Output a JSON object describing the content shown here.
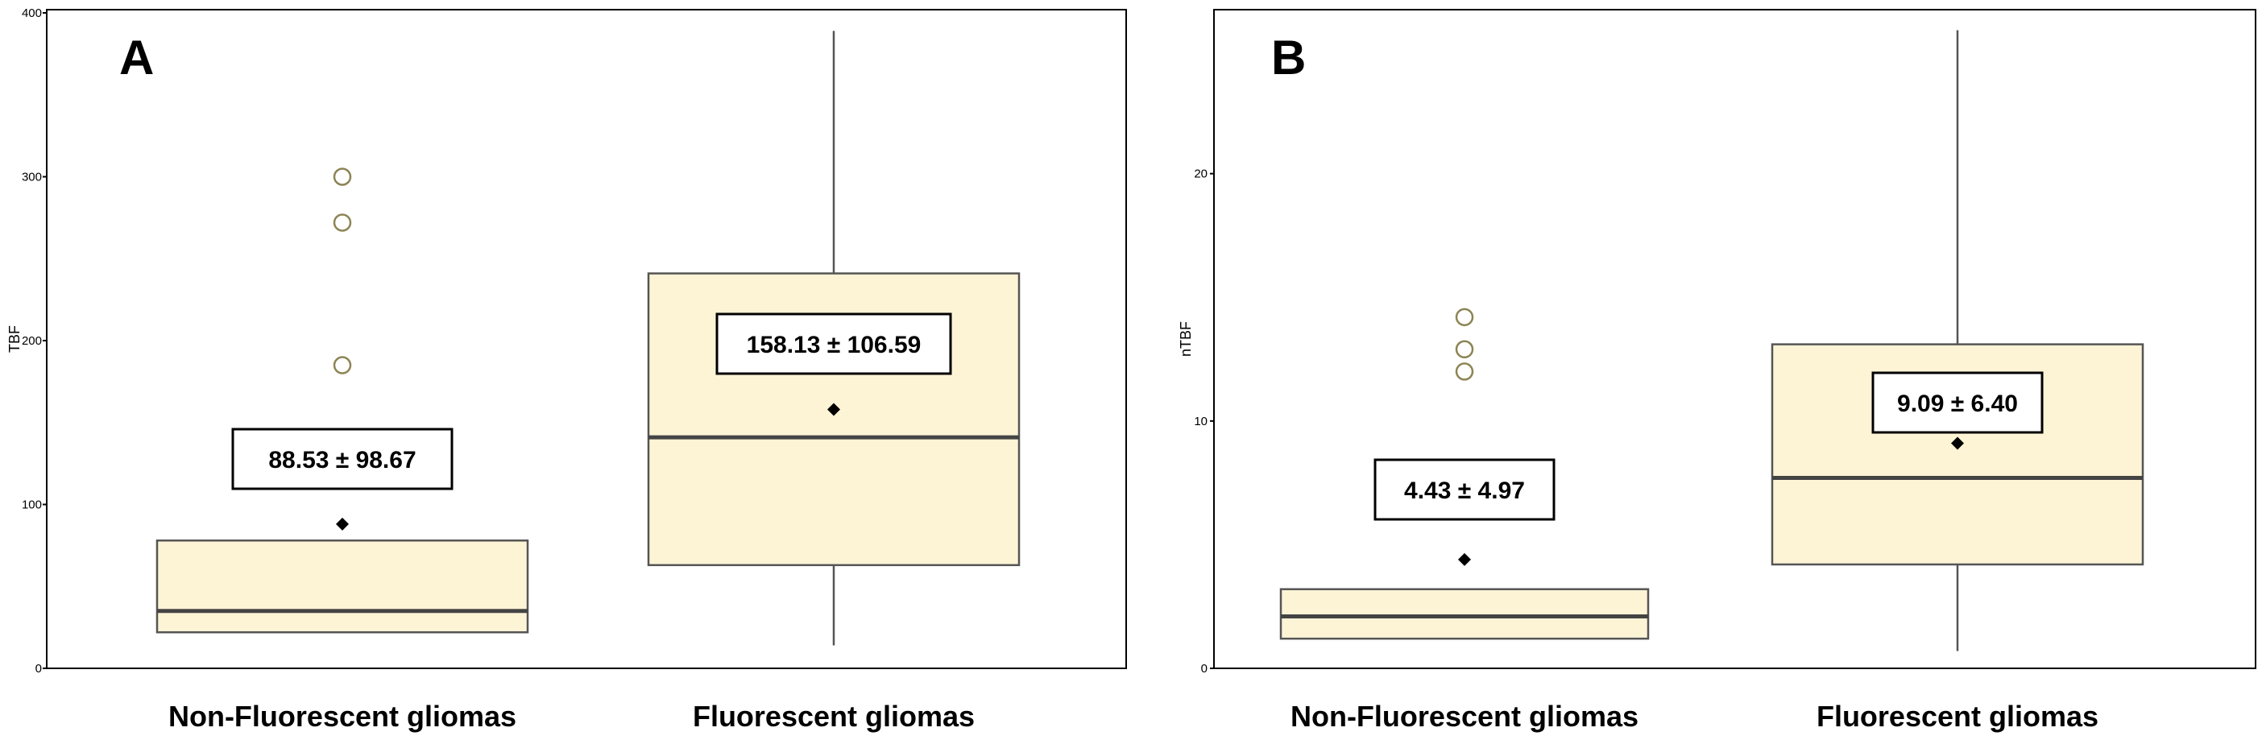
{
  "colors": {
    "box_fill": "#fdf4d6",
    "box_stroke": "#555555",
    "outlier_stroke": "#8c8454",
    "mean_marker": "#000000"
  },
  "chart_data": [
    {
      "type": "box",
      "panel_label": "A",
      "ylabel": "TBF",
      "ylim": [
        0,
        400
      ],
      "yticks": [
        0,
        100,
        200,
        300,
        400
      ],
      "categories": [
        "Non-Fluorescent gliomas",
        "Fluorescent gliomas"
      ],
      "boxes": [
        {
          "category": "Non-Fluorescent gliomas",
          "whisker_low": 22,
          "q1": 22,
          "median": 35,
          "q3": 78,
          "whisker_high": 78,
          "mean": 88,
          "outliers": [
            185,
            272,
            300
          ],
          "annotation": "88.53 ± 98.67"
        },
        {
          "category": "Fluorescent gliomas",
          "whisker_low": 14,
          "q1": 63,
          "median": 141,
          "q3": 241,
          "whisker_high": 389,
          "mean": 158,
          "outliers": [],
          "annotation": "158.13 ± 106.59"
        }
      ]
    },
    {
      "type": "box",
      "panel_label": "B",
      "ylabel": "nTBF",
      "ylim": [
        0,
        26.5
      ],
      "yticks": [
        0,
        10,
        20
      ],
      "categories": [
        "Non-Fluorescent gliomas",
        "Fluorescent gliomas"
      ],
      "boxes": [
        {
          "category": "Non-Fluorescent gliomas",
          "whisker_low": 1.2,
          "q1": 1.2,
          "median": 2.1,
          "q3": 3.2,
          "whisker_high": 3.2,
          "mean": 4.4,
          "outliers": [
            12.0,
            12.9,
            14.2
          ],
          "annotation": "4.43 ± 4.97"
        },
        {
          "category": "Fluorescent gliomas",
          "whisker_low": 0.7,
          "q1": 4.2,
          "median": 7.7,
          "q3": 13.1,
          "whisker_high": 25.8,
          "mean": 9.1,
          "outliers": [],
          "annotation": "9.09 ± 6.40"
        }
      ]
    }
  ]
}
